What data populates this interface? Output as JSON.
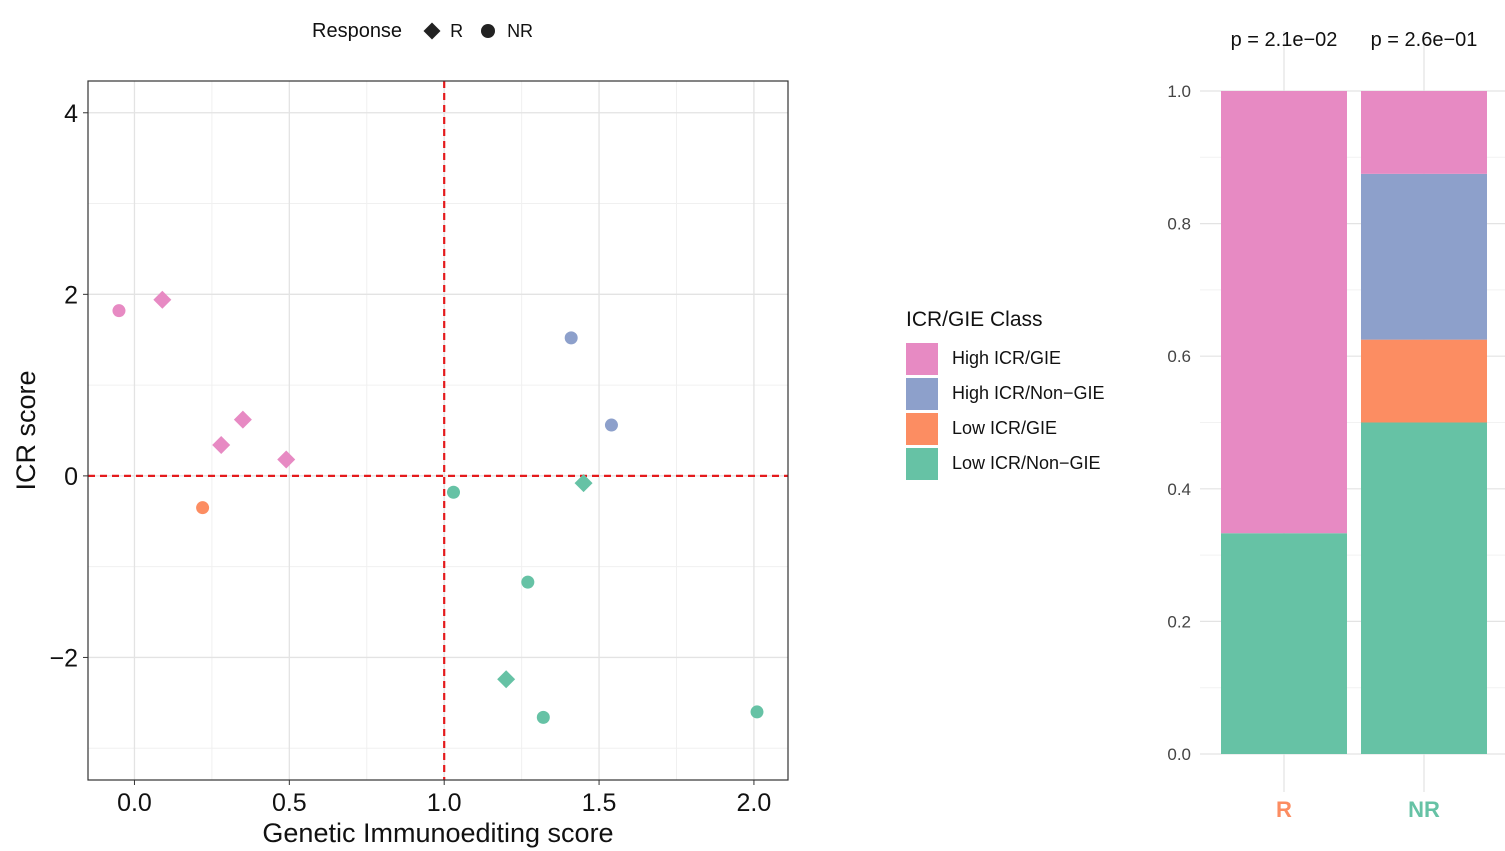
{
  "response_legend": {
    "title": "Response",
    "entries": [
      {
        "label": "R",
        "shape": "diamond"
      },
      {
        "label": "NR",
        "shape": "circle"
      }
    ]
  },
  "class_legend": {
    "title": "ICR/GIE Class",
    "entries": [
      {
        "label": "High ICR/GIE",
        "color": "#E78AC3"
      },
      {
        "label": "High ICR/Non−GIE",
        "color": "#8DA0CB"
      },
      {
        "label": "Low ICR/GIE",
        "color": "#FC8D62"
      },
      {
        "label": "Low ICR/Non−GIE",
        "color": "#66C2A5"
      }
    ]
  },
  "chart_data": [
    {
      "type": "scatter",
      "xlabel": "Genetic Immunoediting score",
      "ylabel": "ICR score",
      "xlim": [
        -0.15,
        2.11
      ],
      "ylim": [
        -3.35,
        4.35
      ],
      "xticks": [
        0.0,
        0.5,
        1.0,
        1.5,
        2.0
      ],
      "xtick_labels": [
        "0.0",
        "0.5",
        "1.0",
        "1.5",
        "2.0"
      ],
      "yticks": [
        -2,
        0,
        2,
        4
      ],
      "ytick_labels": [
        "−2",
        "0",
        "2",
        "4"
      ],
      "ref_lines": {
        "x": 1.0,
        "y": 0.0,
        "color": "#E41A1C"
      },
      "grid": true,
      "points": [
        {
          "x": -0.05,
          "y": 1.82,
          "response": "NR",
          "class": "High ICR/GIE"
        },
        {
          "x": 0.09,
          "y": 1.94,
          "response": "R",
          "class": "High ICR/GIE"
        },
        {
          "x": 0.28,
          "y": 0.34,
          "response": "R",
          "class": "High ICR/GIE"
        },
        {
          "x": 0.35,
          "y": 0.62,
          "response": "R",
          "class": "High ICR/GIE"
        },
        {
          "x": 0.49,
          "y": 0.18,
          "response": "R",
          "class": "High ICR/GIE"
        },
        {
          "x": 0.22,
          "y": -0.35,
          "response": "NR",
          "class": "Low ICR/GIE"
        },
        {
          "x": 1.41,
          "y": 1.52,
          "response": "NR",
          "class": "High ICR/Non−GIE"
        },
        {
          "x": 1.54,
          "y": 0.56,
          "response": "NR",
          "class": "High ICR/Non−GIE"
        },
        {
          "x": 1.03,
          "y": -0.18,
          "response": "NR",
          "class": "Low ICR/Non−GIE"
        },
        {
          "x": 1.45,
          "y": -0.08,
          "response": "R",
          "class": "Low ICR/Non−GIE"
        },
        {
          "x": 1.27,
          "y": -1.17,
          "response": "NR",
          "class": "Low ICR/Non−GIE"
        },
        {
          "x": 1.2,
          "y": -2.24,
          "response": "R",
          "class": "Low ICR/Non−GIE"
        },
        {
          "x": 1.32,
          "y": -2.66,
          "response": "NR",
          "class": "Low ICR/Non−GIE"
        },
        {
          "x": 2.01,
          "y": -2.6,
          "response": "NR",
          "class": "Low ICR/Non−GIE"
        }
      ]
    },
    {
      "type": "bar",
      "stacked": true,
      "categories": [
        "R",
        "NR"
      ],
      "category_colors": [
        "#FC8D62",
        "#66C2A5"
      ],
      "ylim": [
        0,
        1
      ],
      "yticks": [
        0.0,
        0.2,
        0.4,
        0.6,
        0.8,
        1.0
      ],
      "ytick_labels": [
        "0.0",
        "0.2",
        "0.4",
        "0.6",
        "0.8",
        "1.0"
      ],
      "pvalues": [
        "p = 2.1e−02",
        "p = 2.6e−01"
      ],
      "grid": true,
      "series": [
        {
          "class": "Low ICR/Non−GIE",
          "values": [
            0.333,
            0.5
          ]
        },
        {
          "class": "Low ICR/GIE",
          "values": [
            0.0,
            0.125
          ]
        },
        {
          "class": "High ICR/Non−GIE",
          "values": [
            0.0,
            0.25
          ]
        },
        {
          "class": "High ICR/GIE",
          "values": [
            0.667,
            0.125
          ]
        }
      ]
    }
  ]
}
